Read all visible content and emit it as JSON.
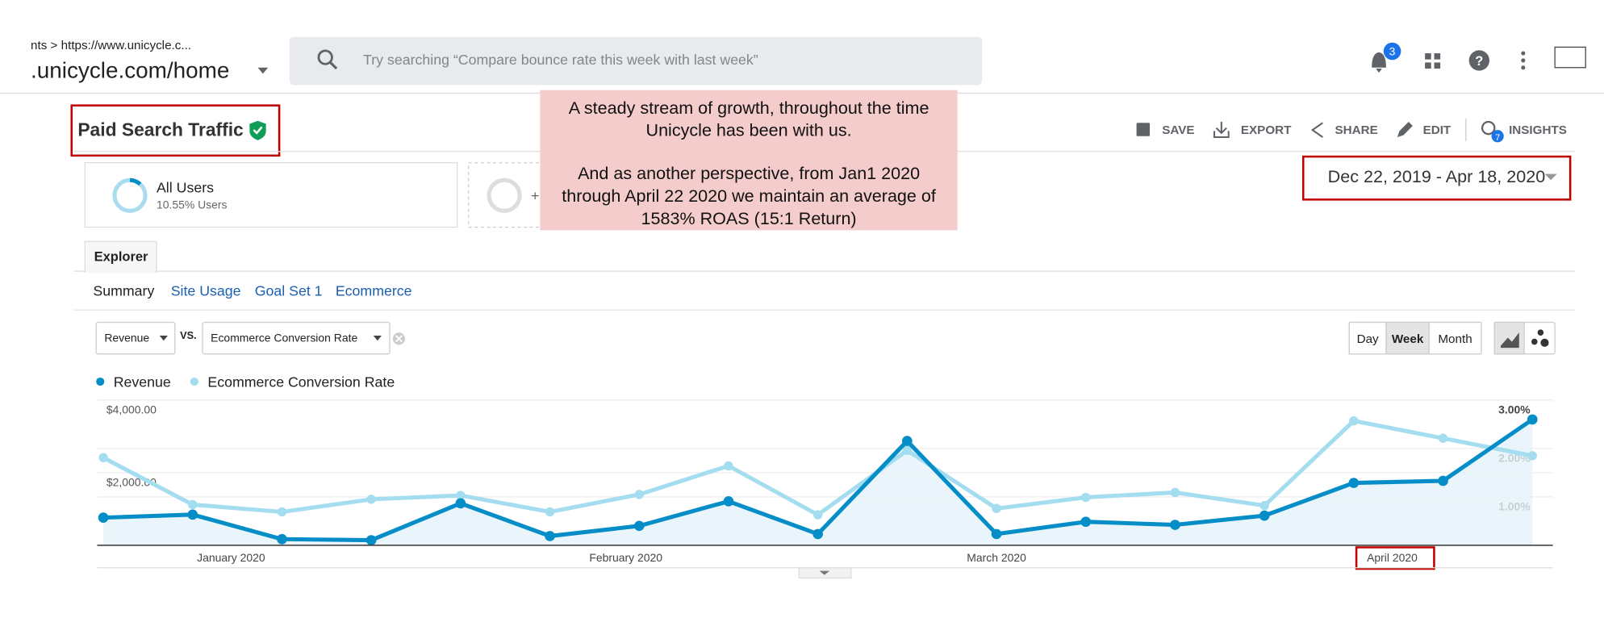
{
  "header": {
    "breadcrumb": "nts > https://www.unicycle.c...",
    "property": ".unicycle.com/home",
    "search_placeholder": "Try searching “Compare bounce rate this week with last week”",
    "notifications": "3"
  },
  "report": {
    "title": "Paid Search Traffic",
    "actions": [
      "SAVE",
      "EXPORT",
      "SHARE",
      "EDIT",
      "INSIGHTS"
    ],
    "insights_badge": "7",
    "date_range": "Dec 22, 2019 - Apr 18, 2020",
    "segment": {
      "name": "All Users",
      "detail": "10.55% Users"
    },
    "add_segment": "+",
    "annotation": [
      [
        "A steady stream of growth, throughout the time",
        "Unicycle has been with us."
      ],
      [
        "And as another perspective, from Jan1 2020",
        "through April 22 2020 we maintain an average of",
        "1583% ROAS (15:1 Return)"
      ]
    ],
    "tab": "Explorer",
    "subtabs": [
      "Summary",
      "Site Usage",
      "Goal Set 1",
      "Ecommerce"
    ],
    "metric1": "Revenue",
    "vs": "VS.",
    "metric2": "Ecommerce Conversion Rate",
    "granularity": [
      "Day",
      "Week",
      "Month"
    ],
    "selected_granularity": "Week"
  },
  "chart_data": {
    "type": "line",
    "x_axis_labels": [
      "January 2020",
      "February 2020",
      "March 2020",
      "April 2020"
    ],
    "series": [
      {
        "name": "Revenue",
        "color": "#058dc7",
        "axis": "y",
        "values": [
          761,
          845,
          169,
          141,
          1155,
          254,
          535,
          1211,
          310,
          2873,
          310,
          648,
          563,
          817,
          1718,
          1775,
          3465
        ]
      },
      {
        "name": "Ecommerce Conversion Rate",
        "color": "#a4dcf0",
        "axis": "y2",
        "values": [
          1.81,
          0.84,
          0.69,
          0.95,
          1.03,
          0.69,
          1.05,
          1.64,
          0.63,
          1.96,
          0.76,
          0.99,
          1.09,
          0.82,
          2.57,
          2.21,
          1.85
        ]
      }
    ],
    "ylim": [
      0,
      4000
    ],
    "yticks": [
      {
        "value": 4000,
        "label": "$4,000.00"
      },
      {
        "value": 2000,
        "label": "$2,000.00"
      }
    ],
    "y2lim": [
      0,
      3
    ],
    "y2ticks": [
      {
        "value": 3,
        "label": "3.00%"
      },
      {
        "value": 2,
        "label": "2.00%"
      },
      {
        "value": 1,
        "label": "1.00%"
      }
    ],
    "grid": true,
    "legend": "top-left"
  }
}
